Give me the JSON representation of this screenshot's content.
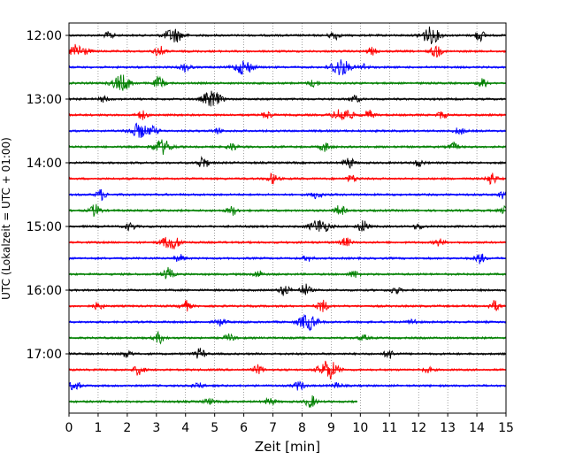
{
  "chart_data": {
    "type": "line",
    "title": "",
    "xlabel": "Zeit  [min]",
    "ylabel": "UTC (Lokalzeit = UTC + 01:00)",
    "xlim": [
      0,
      15
    ],
    "x_ticks": [
      "0",
      "1",
      "2",
      "3",
      "4",
      "5",
      "6",
      "7",
      "8",
      "9",
      "10",
      "11",
      "12",
      "13",
      "14",
      "15"
    ],
    "y_ticks": [
      "12:00",
      "13:00",
      "14:00",
      "15:00",
      "16:00",
      "17:00"
    ],
    "grid": "vertical dotted",
    "colors": [
      "#000000",
      "#ff0000",
      "#0000ff",
      "#008000"
    ],
    "traces": [
      {
        "start": "12:00",
        "color": "#000000",
        "end_min": 15,
        "events": [
          [
            1.4,
            4
          ],
          [
            3.6,
            8
          ],
          [
            9.1,
            5
          ],
          [
            12.4,
            9
          ],
          [
            14.1,
            6
          ]
        ]
      },
      {
        "start": "12:15",
        "color": "#ff0000",
        "end_min": 15,
        "events": [
          [
            0.3,
            8
          ],
          [
            3.1,
            6
          ],
          [
            10.4,
            4
          ],
          [
            12.6,
            7
          ]
        ]
      },
      {
        "start": "12:30",
        "color": "#0000ff",
        "end_min": 15,
        "events": [
          [
            4.0,
            5
          ],
          [
            6.0,
            8
          ],
          [
            9.3,
            10
          ],
          [
            10.1,
            4
          ]
        ]
      },
      {
        "start": "12:45",
        "color": "#008000",
        "end_min": 15,
        "events": [
          [
            1.8,
            9
          ],
          [
            3.1,
            7
          ],
          [
            8.4,
            4
          ],
          [
            14.2,
            5
          ]
        ]
      },
      {
        "start": "13:00",
        "color": "#000000",
        "end_min": 15,
        "events": [
          [
            4.9,
            9
          ],
          [
            1.2,
            3
          ],
          [
            9.8,
            4
          ]
        ]
      },
      {
        "start": "13:15",
        "color": "#ff0000",
        "end_min": 15,
        "events": [
          [
            2.5,
            5
          ],
          [
            6.8,
            4
          ],
          [
            9.4,
            8
          ],
          [
            10.3,
            5
          ],
          [
            12.8,
            4
          ]
        ]
      },
      {
        "start": "13:30",
        "color": "#0000ff",
        "end_min": 15,
        "events": [
          [
            2.4,
            8
          ],
          [
            2.9,
            4
          ],
          [
            5.1,
            3
          ],
          [
            13.4,
            4
          ]
        ]
      },
      {
        "start": "13:45",
        "color": "#008000",
        "end_min": 15,
        "events": [
          [
            3.2,
            8
          ],
          [
            5.6,
            4
          ],
          [
            8.8,
            5
          ],
          [
            13.2,
            4
          ]
        ]
      },
      {
        "start": "14:00",
        "color": "#000000",
        "end_min": 15,
        "events": [
          [
            4.6,
            7
          ],
          [
            9.6,
            6
          ],
          [
            12.0,
            4
          ]
        ]
      },
      {
        "start": "14:15",
        "color": "#ff0000",
        "end_min": 15,
        "events": [
          [
            7.0,
            6
          ],
          [
            9.7,
            4
          ],
          [
            14.5,
            7
          ]
        ]
      },
      {
        "start": "14:30",
        "color": "#0000ff",
        "end_min": 15,
        "events": [
          [
            1.1,
            6
          ],
          [
            8.5,
            4
          ],
          [
            14.9,
            5
          ]
        ]
      },
      {
        "start": "14:45",
        "color": "#008000",
        "end_min": 15,
        "events": [
          [
            0.9,
            7
          ],
          [
            5.6,
            5
          ],
          [
            9.3,
            6
          ],
          [
            15.0,
            5
          ]
        ]
      },
      {
        "start": "15:00",
        "color": "#000000",
        "end_min": 15,
        "events": [
          [
            2.1,
            4
          ],
          [
            8.6,
            8
          ],
          [
            10.1,
            7
          ],
          [
            12.0,
            3
          ]
        ]
      },
      {
        "start": "15:15",
        "color": "#ff0000",
        "end_min": 15,
        "events": [
          [
            3.5,
            8
          ],
          [
            9.5,
            5
          ],
          [
            12.7,
            4
          ]
        ]
      },
      {
        "start": "15:30",
        "color": "#0000ff",
        "end_min": 15,
        "events": [
          [
            3.8,
            4
          ],
          [
            8.2,
            3
          ],
          [
            14.1,
            6
          ]
        ]
      },
      {
        "start": "15:45",
        "color": "#008000",
        "end_min": 15,
        "events": [
          [
            3.4,
            7
          ],
          [
            6.5,
            4
          ],
          [
            9.8,
            4
          ]
        ]
      },
      {
        "start": "16:00",
        "color": "#000000",
        "end_min": 15,
        "events": [
          [
            7.4,
            6
          ],
          [
            8.1,
            7
          ],
          [
            11.2,
            4
          ]
        ]
      },
      {
        "start": "16:15",
        "color": "#ff0000",
        "end_min": 15,
        "events": [
          [
            1.0,
            4
          ],
          [
            4.0,
            6
          ],
          [
            8.7,
            7
          ],
          [
            14.6,
            6
          ]
        ]
      },
      {
        "start": "16:30",
        "color": "#0000ff",
        "end_min": 15,
        "events": [
          [
            5.2,
            4
          ],
          [
            8.2,
            9
          ],
          [
            11.8,
            3
          ]
        ]
      },
      {
        "start": "16:45",
        "color": "#008000",
        "end_min": 15,
        "events": [
          [
            3.1,
            6
          ],
          [
            5.5,
            4
          ],
          [
            10.1,
            3
          ]
        ]
      },
      {
        "start": "17:00",
        "color": "#000000",
        "end_min": 15,
        "events": [
          [
            2.0,
            4
          ],
          [
            4.5,
            6
          ],
          [
            11.0,
            5
          ]
        ]
      },
      {
        "start": "17:15",
        "color": "#ff0000",
        "end_min": 15,
        "events": [
          [
            2.4,
            6
          ],
          [
            6.5,
            5
          ],
          [
            8.9,
            11
          ],
          [
            12.3,
            3
          ]
        ]
      },
      {
        "start": "17:30",
        "color": "#0000ff",
        "end_min": 15,
        "events": [
          [
            0.2,
            6
          ],
          [
            4.4,
            4
          ],
          [
            7.9,
            5
          ],
          [
            9.2,
            3
          ]
        ]
      },
      {
        "start": "17:45",
        "color": "#008000",
        "end_min": 9.9,
        "events": [
          [
            6.9,
            4
          ],
          [
            8.3,
            7
          ],
          [
            4.8,
            3
          ]
        ]
      }
    ]
  }
}
